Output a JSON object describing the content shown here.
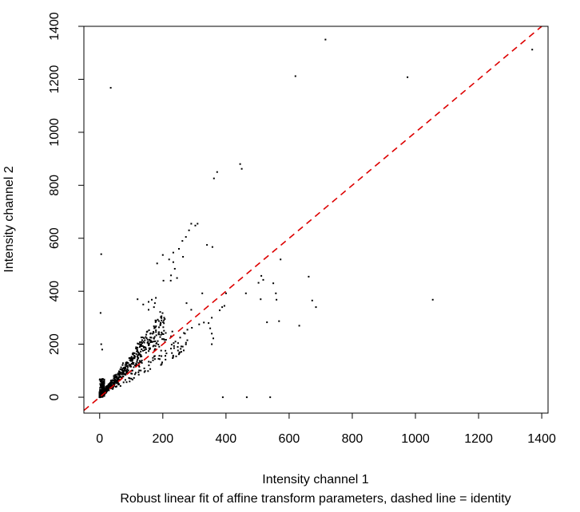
{
  "chart_data": {
    "type": "scatter",
    "title": "",
    "xlabel": "Intensity channel 1",
    "ylabel": "Intensity channel 2",
    "subtitle": "Robust linear fit of affine transform parameters, dashed line = identity",
    "xlim": [
      -50,
      1420
    ],
    "ylim": [
      -60,
      1400
    ],
    "xticks": [
      0,
      200,
      400,
      600,
      800,
      1000,
      1200,
      1400
    ],
    "yticks": [
      0,
      200,
      400,
      600,
      800,
      1000,
      1200,
      1400
    ],
    "grid": false,
    "legend": "none",
    "point_color": "#000000",
    "reference_line": {
      "label": "identity",
      "slope": 1,
      "intercept": 0,
      "style": "dashed",
      "color": "#dd0000"
    },
    "series": [
      {
        "values": [
          [
            715,
            1350
          ],
          [
            1370,
            1312
          ],
          [
            620,
            1212
          ],
          [
            975,
            1208
          ],
          [
            35,
            1168
          ],
          [
            445,
            880
          ],
          [
            450,
            862
          ],
          [
            372,
            850
          ],
          [
            362,
            826
          ],
          [
            290,
            655
          ],
          [
            310,
            655
          ],
          [
            303,
            648
          ],
          [
            283,
            630
          ],
          [
            273,
            605
          ],
          [
            262,
            590
          ],
          [
            340,
            575
          ],
          [
            357,
            567
          ],
          [
            251,
            560
          ],
          [
            233,
            546
          ],
          [
            5,
            540
          ],
          [
            264,
            530
          ],
          [
            200,
            537
          ],
          [
            220,
            520
          ],
          [
            233,
            510
          ],
          [
            182,
            505
          ],
          [
            573,
            520
          ],
          [
            238,
            485
          ],
          [
            226,
            460
          ],
          [
            245,
            450
          ],
          [
            202,
            440
          ],
          [
            225,
            440
          ],
          [
            662,
            455
          ],
          [
            512,
            458
          ],
          [
            518,
            443
          ],
          [
            503,
            432
          ],
          [
            550,
            430
          ],
          [
            558,
            392
          ],
          [
            325,
            392
          ],
          [
            400,
            392
          ],
          [
            463,
            392
          ],
          [
            120,
            370
          ],
          [
            155,
            360
          ],
          [
            165,
            368
          ],
          [
            155,
            330
          ],
          [
            172,
            340
          ],
          [
            178,
            375
          ],
          [
            138,
            350
          ],
          [
            175,
            355
          ],
          [
            1055,
            368
          ],
          [
            510,
            370
          ],
          [
            560,
            368
          ],
          [
            673,
            365
          ],
          [
            685,
            340
          ],
          [
            530,
            283
          ],
          [
            568,
            287
          ],
          [
            632,
            270
          ],
          [
            3,
            318
          ],
          [
            388,
            340
          ],
          [
            380,
            328
          ],
          [
            395,
            345
          ],
          [
            275,
            355
          ],
          [
            290,
            330
          ],
          [
            350,
            260
          ],
          [
            355,
            240
          ],
          [
            360,
            222
          ],
          [
            345,
            280
          ],
          [
            355,
            300
          ],
          [
            315,
            275
          ],
          [
            330,
            282
          ],
          [
            292,
            262
          ],
          [
            278,
            255
          ],
          [
            355,
            200
          ],
          [
            5,
            200
          ],
          [
            8,
            180
          ],
          [
            270,
            240
          ],
          [
            255,
            225
          ],
          [
            240,
            210
          ],
          [
            226,
            230
          ],
          [
            230,
            248
          ],
          [
            210,
            217
          ],
          [
            390,
            0
          ],
          [
            466,
            0
          ],
          [
            540,
            0
          ]
        ]
      }
    ]
  }
}
